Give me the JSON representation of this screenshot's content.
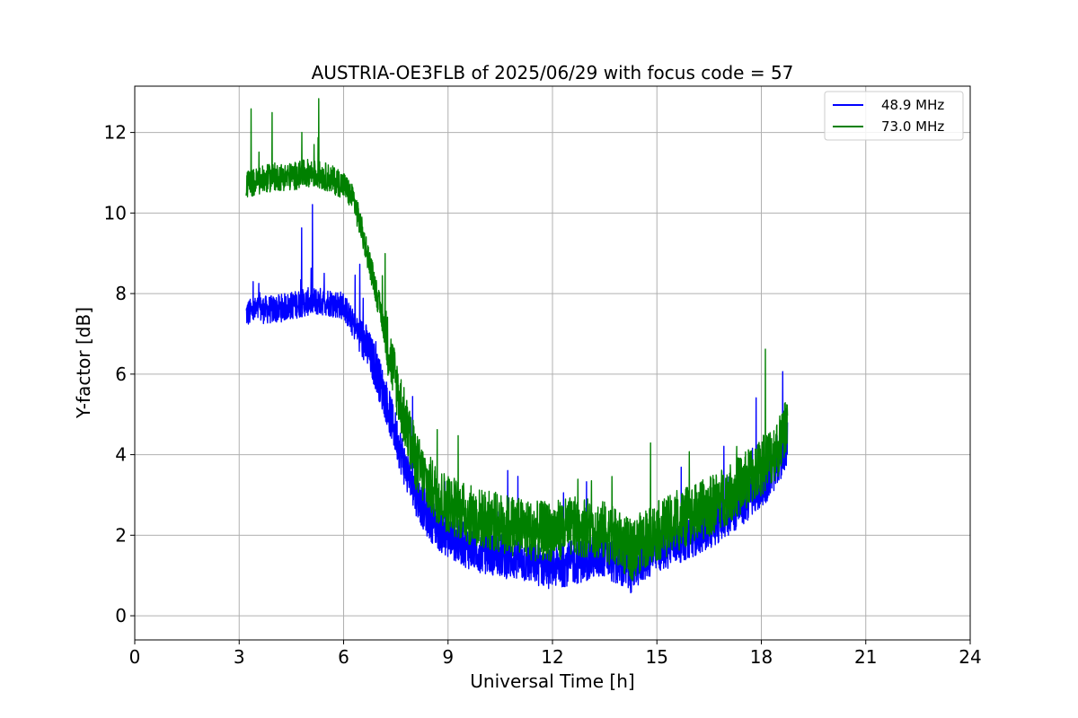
{
  "chart_data": {
    "type": "line",
    "title": "AUSTRIA-OE3FLB of 2025/06/29 with focus code = 57",
    "xlabel": "Universal Time [h]",
    "ylabel": "Y-factor [dB]",
    "xlim": [
      0,
      24
    ],
    "ylim": [
      -0.6,
      13.15
    ],
    "xticks": [
      0,
      3,
      6,
      9,
      12,
      15,
      18,
      21,
      24
    ],
    "yticks": [
      0,
      2,
      4,
      6,
      8,
      10,
      12
    ],
    "grid": true,
    "legend_position": "top-right",
    "series": [
      {
        "name": "48.9 MHz",
        "color": "#0000ff",
        "x": [
          3.2,
          3.6,
          4.0,
          4.5,
          5.0,
          5.5,
          6.0,
          6.3,
          6.6,
          6.9,
          7.2,
          7.5,
          7.8,
          8.1,
          8.4,
          8.8,
          9.2,
          9.6,
          10.0,
          10.5,
          11.0,
          11.5,
          12.0,
          12.5,
          13.0,
          13.5,
          14.0,
          14.3,
          14.6,
          15.0,
          15.5,
          16.0,
          16.5,
          17.0,
          17.5,
          18.0,
          18.5,
          18.75
        ],
        "values": [
          7.5,
          7.6,
          7.6,
          7.7,
          7.8,
          7.8,
          7.7,
          7.2,
          6.8,
          6.2,
          5.4,
          4.5,
          3.6,
          3.0,
          2.5,
          2.1,
          1.9,
          1.7,
          1.6,
          1.5,
          1.4,
          1.3,
          1.2,
          1.3,
          1.4,
          1.5,
          1.2,
          1.1,
          1.4,
          1.6,
          1.8,
          2.0,
          2.2,
          2.5,
          2.8,
          3.2,
          3.8,
          4.3
        ]
      },
      {
        "name": "73.0 MHz",
        "color": "#008000",
        "x": [
          3.2,
          3.6,
          4.0,
          4.5,
          5.0,
          5.5,
          6.0,
          6.3,
          6.6,
          6.9,
          7.2,
          7.5,
          7.8,
          8.1,
          8.4,
          8.8,
          9.2,
          9.6,
          10.0,
          10.5,
          11.0,
          11.5,
          12.0,
          12.5,
          13.0,
          13.5,
          14.0,
          14.3,
          14.6,
          15.0,
          15.5,
          16.0,
          16.5,
          17.0,
          17.5,
          18.0,
          18.5,
          18.75
        ],
        "values": [
          10.7,
          10.8,
          10.9,
          10.9,
          11.0,
          10.9,
          10.7,
          10.3,
          9.3,
          8.2,
          7.0,
          5.8,
          4.7,
          3.8,
          3.3,
          2.9,
          2.7,
          2.5,
          2.4,
          2.3,
          2.2,
          2.1,
          2.1,
          2.2,
          2.2,
          2.1,
          1.8,
          1.6,
          1.9,
          2.1,
          2.3,
          2.5,
          2.7,
          3.0,
          3.3,
          3.7,
          4.2,
          4.8
        ]
      }
    ]
  }
}
